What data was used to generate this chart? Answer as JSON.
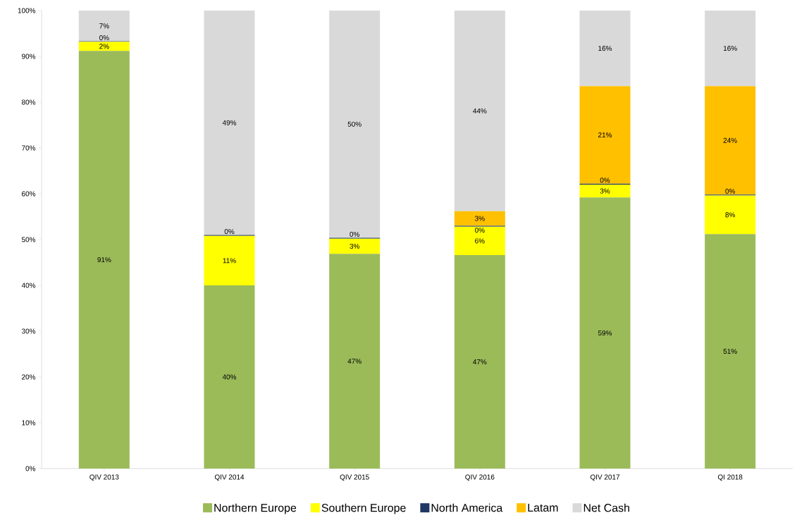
{
  "chart_data": {
    "type": "bar",
    "stacked": true,
    "legend": "bottom",
    "categories": [
      "QIV 2013",
      "QIV 2014",
      "QIV 2015",
      "QIV 2016",
      "QIV 2017",
      "QI 2018"
    ],
    "ylim": [
      0,
      100
    ],
    "yticks": [
      {
        "value": 0,
        "label": "0%"
      },
      {
        "value": 10,
        "label": "10%"
      },
      {
        "value": 20,
        "label": "20%"
      },
      {
        "value": 30,
        "label": "30%"
      },
      {
        "value": 40,
        "label": "40%"
      },
      {
        "value": 50,
        "label": "50%"
      },
      {
        "value": 60,
        "label": "60%"
      },
      {
        "value": 70,
        "label": "70%"
      },
      {
        "value": 80,
        "label": "80%"
      },
      {
        "value": 90,
        "label": "90%"
      },
      {
        "value": 100,
        "label": "100%"
      }
    ],
    "series": [
      {
        "name": "Northern Europe",
        "color": "#9bbb59",
        "values": [
          91.2,
          40.0,
          46.9,
          46.6,
          59.2,
          51.2
        ],
        "value_labels": [
          "91%",
          "40%",
          "47%",
          "47%",
          "59%",
          "51%"
        ]
      },
      {
        "name": "Southern Europe",
        "color": "#ffff00",
        "values": [
          2.0,
          10.8,
          3.3,
          6.2,
          2.8,
          8.4
        ],
        "value_labels": [
          "2%",
          "11%",
          "3%",
          "6%",
          "3%",
          "8%"
        ]
      },
      {
        "name": "North America",
        "color": "#1f3864",
        "values": [
          0.1,
          0.2,
          0.2,
          0.2,
          0.2,
          0.2
        ],
        "value_labels": [
          "0%",
          "0%",
          "0%",
          "0%",
          "0%",
          "0%"
        ]
      },
      {
        "name": "Latam",
        "color": "#ffc000",
        "values": [
          0,
          0,
          0,
          3.2,
          21.3,
          23.7
        ],
        "value_labels": [
          null,
          null,
          null,
          "3%",
          "21%",
          "24%"
        ]
      },
      {
        "name": "Net Cash",
        "color": "#d9d9d9",
        "values": [
          6.7,
          49.0,
          49.6,
          43.8,
          16.5,
          16.5
        ],
        "value_labels": [
          "7%",
          "49%",
          "50%",
          "44%",
          "16%",
          "16%"
        ]
      }
    ]
  }
}
